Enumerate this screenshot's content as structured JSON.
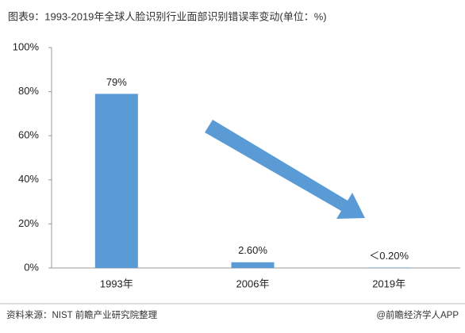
{
  "chart_data": {
    "type": "bar",
    "title": "图表9：1993-2019年全球人脸识别行业面部识别错误率变动(单位：%)",
    "categories": [
      "1993年",
      "2006年",
      "2019年"
    ],
    "values": [
      79,
      2.6,
      0.2
    ],
    "value_labels": [
      "79%",
      "2.60%",
      "＜0.20%"
    ],
    "color": "#5b9bd5",
    "ylim": [
      0,
      100
    ],
    "yticks": [
      {
        "value": 0,
        "label": "0%"
      },
      {
        "value": 20,
        "label": "20%"
      },
      {
        "value": 40,
        "label": "40%"
      },
      {
        "value": 60,
        "label": "60%"
      },
      {
        "value": 80,
        "label": "80%"
      },
      {
        "value": 100,
        "label": "100%"
      }
    ],
    "source": "资料来源：NIST 前瞻产业研究院整理",
    "footer": "@前瞻经济学人APP"
  }
}
